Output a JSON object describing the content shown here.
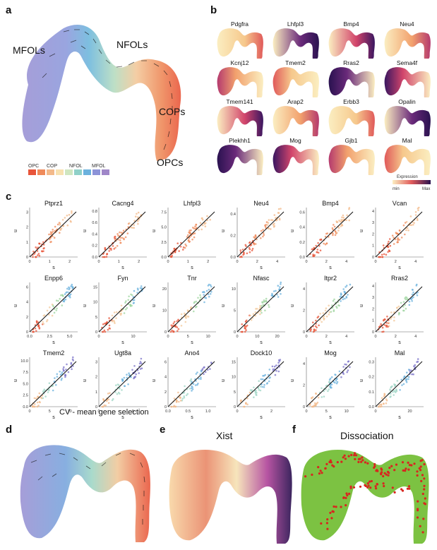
{
  "panels": {
    "a": {
      "letter": "a",
      "labels": [
        "MFOLs",
        "NFOLs",
        "COPs",
        "OPCs"
      ],
      "legend": {
        "items": [
          "OPC",
          "COP",
          "NFOL",
          "MFOL"
        ],
        "colors": [
          "#e8553a",
          "#ef8a5a",
          "#f3b98a",
          "#f7e1b0",
          "#cfe6c0",
          "#8fd0c8",
          "#6bb1dd",
          "#8c93d8",
          "#9f86c8"
        ]
      }
    },
    "b": {
      "letter": "b",
      "genes": [
        "Pdgfra",
        "Lhfpl3",
        "Bmp4",
        "Neu4",
        "Kcnj12",
        "Tmem2",
        "Rras2",
        "Sema4f",
        "Tmem141",
        "Arap2",
        "Erbb3",
        "Opalin",
        "Plekhh1",
        "Mog",
        "Gjb1",
        "Mal"
      ],
      "colorbar": {
        "title": "Expression",
        "min": "min",
        "max": "Max"
      }
    },
    "c": {
      "letter": "c",
      "xlabel": "s",
      "ylabel": "u",
      "genes": [
        {
          "name": "Ptprz1",
          "yticks": [
            "0",
            "1",
            "2",
            "3"
          ],
          "xticks": [
            "0",
            "1",
            "2"
          ]
        },
        {
          "name": "Cacng4",
          "yticks": [
            "0.0",
            "0.2",
            "0.4",
            "0.6",
            "0.8"
          ],
          "xticks": [
            "0",
            "1",
            "2"
          ]
        },
        {
          "name": "Lhfpl3",
          "yticks": [
            "0.0",
            "2.5",
            "5.0",
            "7.5"
          ],
          "xticks": [
            "0",
            "1",
            "2"
          ]
        },
        {
          "name": "Neu4",
          "yticks": [
            "0.0",
            "0.2",
            "0.4"
          ],
          "xticks": [
            "0",
            "2",
            "4"
          ]
        },
        {
          "name": "Bmp4",
          "yticks": [
            "0.0",
            "0.2",
            "0.4",
            "0.6"
          ],
          "xticks": [
            "0",
            "2",
            "4"
          ]
        },
        {
          "name": "Vcan",
          "yticks": [
            "0",
            "1",
            "2",
            "3",
            "4"
          ],
          "xticks": [
            "0",
            "2",
            "4"
          ]
        },
        {
          "name": "Enpp6",
          "yticks": [
            "0",
            "2",
            "4",
            "6"
          ],
          "xticks": [
            "0.0",
            "2.5",
            "5.0"
          ]
        },
        {
          "name": "Fyn",
          "yticks": [
            "0",
            "5",
            "10",
            "15"
          ],
          "xticks": [
            "0",
            "10"
          ]
        },
        {
          "name": "Tnr",
          "yticks": [
            "0",
            "10",
            "20"
          ],
          "xticks": [
            "0",
            "5",
            "10"
          ]
        },
        {
          "name": "Nfasc",
          "yticks": [
            "0",
            "5",
            "10"
          ],
          "xticks": [
            "0",
            "10",
            "20"
          ]
        },
        {
          "name": "Itpr2",
          "yticks": [
            "0",
            "2",
            "4"
          ],
          "xticks": [
            "0",
            "2",
            "4"
          ]
        },
        {
          "name": "Rras2",
          "yticks": [
            "0",
            "1",
            "2",
            "3",
            "4"
          ],
          "xticks": [
            "0",
            "2",
            "4"
          ]
        },
        {
          "name": "Tmem2",
          "yticks": [
            "0.0",
            "2.5",
            "5.0",
            "7.5",
            "10.0"
          ],
          "xticks": [
            "0",
            "5",
            "10"
          ]
        },
        {
          "name": "Ugt8a",
          "yticks": [
            "0",
            "1",
            "2",
            "3"
          ],
          "xticks": [
            "0",
            "5"
          ]
        },
        {
          "name": "Ano4",
          "yticks": [
            "0",
            "2",
            "4",
            "6"
          ],
          "xticks": [
            "0.0",
            "0.5",
            "1.0"
          ]
        },
        {
          "name": "Dock10",
          "yticks": [
            "0",
            "5",
            "10",
            "15"
          ],
          "xticks": [
            "0",
            "2"
          ]
        },
        {
          "name": "Mog",
          "yticks": [
            "0",
            "2",
            "4"
          ],
          "xticks": [
            "0",
            "5",
            "10"
          ]
        },
        {
          "name": "Mal",
          "yticks": [
            "0.0",
            "0.1",
            "0.2",
            "0.3"
          ],
          "xticks": [
            "0",
            "20"
          ]
        }
      ]
    },
    "d": {
      "letter": "d",
      "caption": "CV - mean gene selection"
    },
    "e": {
      "letter": "e",
      "title": "Xist"
    },
    "f": {
      "letter": "f",
      "title": "Dissociation"
    }
  }
}
